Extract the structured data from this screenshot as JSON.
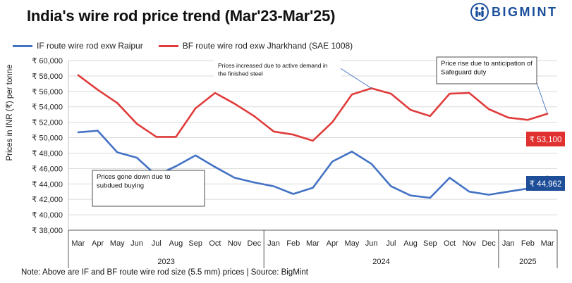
{
  "header": {
    "title": "India's wire rod price trend (Mar'23-Mar'25)",
    "brand": "BIGMINT"
  },
  "footer": {
    "note": "Note: Above are IF and BF route wire rod size (5.5 mm) prices  | Source: BigMint"
  },
  "chart_data": {
    "type": "line",
    "title": "India's wire rod price trend (Mar'23-Mar'25)",
    "ylabel": "Prices in INR (₹) per tonne",
    "xlabel": "",
    "ylim": [
      38000,
      60000
    ],
    "y_ticks": [
      38000,
      40000,
      42000,
      44000,
      46000,
      48000,
      50000,
      52000,
      54000,
      56000,
      58000,
      60000
    ],
    "y_tick_labels": [
      "₹ 38,000",
      "₹ 40,000",
      "₹ 42,000",
      "₹ 44,000",
      "₹ 46,000",
      "₹ 48,000",
      "₹ 50,000",
      "₹ 52,000",
      "₹ 54,000",
      "₹ 56,000",
      "₹ 58,000",
      "₹ 60,000"
    ],
    "categories": [
      "Mar",
      "Apr",
      "May",
      "Jun",
      "Jul",
      "Aug",
      "Sep",
      "Oct",
      "Nov",
      "Dec",
      "Jan",
      "Feb",
      "Mar",
      "Apr",
      "May",
      "Jun",
      "Jul",
      "Aug",
      "Sep",
      "Oct",
      "Nov",
      "Dec",
      "Jan",
      "Feb",
      "Mar"
    ],
    "year_groups": [
      {
        "label": "2023",
        "count": 10
      },
      {
        "label": "2024",
        "count": 12
      },
      {
        "label": "2025",
        "count": 3
      }
    ],
    "grid": true,
    "legend_position": "top-left",
    "series": [
      {
        "name": "IF route wire rod exw Raipur",
        "color": "#4472c4",
        "values": [
          50700,
          50900,
          48100,
          47400,
          45100,
          46300,
          47700,
          46200,
          44800,
          44200,
          43700,
          42700,
          43500,
          46900,
          48200,
          46600,
          43700,
          42500,
          42200,
          44800,
          43000,
          42600,
          43000,
          43400,
          44962
        ],
        "end_label": "₹ 44,962",
        "end_label_color": "#1f4e99"
      },
      {
        "name": "BF route wire rod exw Jharkhand (SAE 1008)",
        "color": "#e03c3c",
        "values": [
          58100,
          56200,
          54500,
          51800,
          50100,
          50100,
          53800,
          55800,
          54400,
          52800,
          50800,
          50400,
          49600,
          52000,
          55600,
          56400,
          55700,
          53600,
          52800,
          55700,
          55800,
          53700,
          52600,
          52300,
          53100
        ],
        "end_label": "₹ 53,100",
        "end_label_color": "#e03030"
      }
    ],
    "annotations": [
      {
        "text": "Prices increased due to active demand in the finished steel",
        "target_series": 1,
        "target_index": 15
      },
      {
        "text": "Price rise due to anticipation of Safeguard duty",
        "target_series": 1,
        "target_index": 24
      },
      {
        "text": "Prices gone down due to subdued buying",
        "target_series": 0,
        "target_index": 4
      }
    ]
  }
}
